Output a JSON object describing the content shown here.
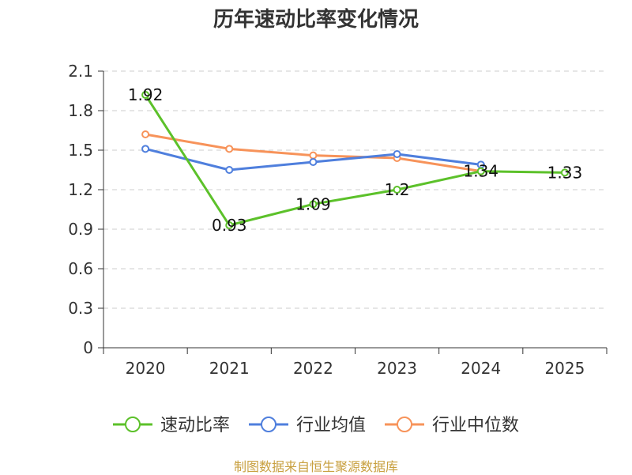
{
  "chart_data": {
    "type": "line",
    "title": "历年速动比率变化情况",
    "categories": [
      "2020",
      "2021",
      "2022",
      "2023",
      "2024",
      "2025"
    ],
    "y_ticks": [
      "0",
      "0.3",
      "0.6",
      "0.9",
      "1.2",
      "1.5",
      "1.8",
      "2.1"
    ],
    "ylim": [
      0,
      2.1
    ],
    "grid": true,
    "legend_position": "bottom",
    "series": [
      {
        "name": "速动比率",
        "color": "#5cc12a",
        "values": [
          1.92,
          0.93,
          1.09,
          1.2,
          1.34,
          1.33
        ],
        "labels": [
          "1.92",
          "0.93",
          "1.09",
          "1.2",
          "1.34",
          "1.33"
        ]
      },
      {
        "name": "行业均值",
        "color": "#4f7fdd",
        "values": [
          1.51,
          1.35,
          1.41,
          1.47,
          1.39,
          null
        ]
      },
      {
        "name": "行业中位数",
        "color": "#f7935a",
        "values": [
          1.62,
          1.51,
          1.46,
          1.44,
          1.34,
          null
        ]
      }
    ]
  },
  "source": "制图数据来自恒生聚源数据库"
}
